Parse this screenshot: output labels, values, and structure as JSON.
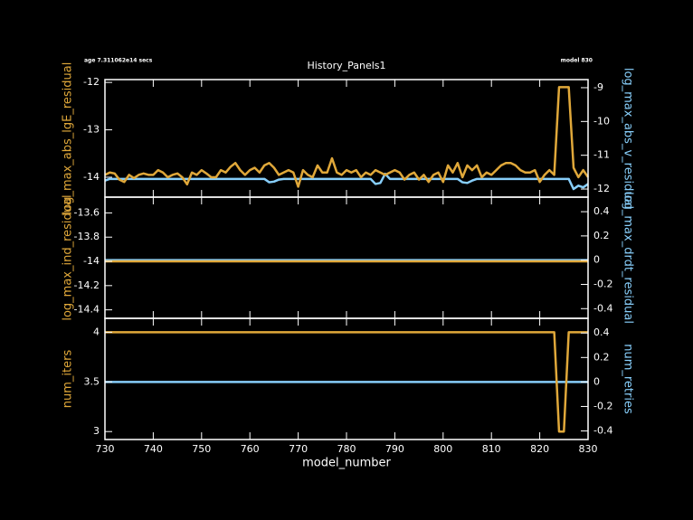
{
  "chart_data": [
    {
      "type": "line",
      "title": "History_Panels1",
      "annotations": [
        "age 7.311062e14 secs",
        "model 830"
      ],
      "x": [
        730,
        731,
        732,
        733,
        734,
        735,
        736,
        737,
        738,
        739,
        740,
        741,
        742,
        743,
        744,
        745,
        746,
        747,
        748,
        749,
        750,
        751,
        752,
        753,
        754,
        755,
        756,
        757,
        758,
        759,
        760,
        761,
        762,
        763,
        764,
        765,
        766,
        767,
        768,
        769,
        770,
        771,
        772,
        773,
        774,
        775,
        776,
        777,
        778,
        779,
        780,
        781,
        782,
        783,
        784,
        785,
        786,
        787,
        788,
        789,
        790,
        791,
        792,
        793,
        794,
        795,
        796,
        797,
        798,
        799,
        800,
        801,
        802,
        803,
        804,
        805,
        806,
        807,
        808,
        809,
        810,
        811,
        812,
        813,
        814,
        815,
        816,
        817,
        818,
        819,
        820,
        821,
        822,
        823,
        824,
        825,
        826,
        827,
        828,
        829,
        830
      ],
      "xlim": [
        730,
        830
      ],
      "ylim": [
        -14.42,
        -11.94
      ],
      "yticks": [
        -12,
        -13,
        -14
      ],
      "y2lim": [
        -12.24,
        -8.76
      ],
      "y2ticks": [
        -9,
        -10,
        -11,
        -12
      ],
      "series": [
        {
          "name": "log_max_abs_lgE_residual",
          "color": "#e0a83a",
          "values": [
            -13.95,
            -13.9,
            -13.92,
            -14.05,
            -14.1,
            -13.95,
            -14.02,
            -13.95,
            -13.92,
            -13.95,
            -13.95,
            -13.85,
            -13.9,
            -14.0,
            -13.95,
            -13.92,
            -14.0,
            -14.15,
            -13.9,
            -13.95,
            -13.85,
            -13.92,
            -14.0,
            -14.0,
            -13.85,
            -13.9,
            -13.78,
            -13.7,
            -13.85,
            -13.95,
            -13.85,
            -13.8,
            -13.9,
            -13.75,
            -13.7,
            -13.8,
            -13.95,
            -13.9,
            -13.85,
            -13.9,
            -14.2,
            -13.85,
            -13.95,
            -14.0,
            -13.75,
            -13.9,
            -13.9,
            -13.6,
            -13.9,
            -13.95,
            -13.85,
            -13.9,
            -13.85,
            -14.0,
            -13.9,
            -13.95,
            -13.85,
            -13.9,
            -13.95,
            -13.9,
            -13.85,
            -13.9,
            -14.05,
            -13.95,
            -13.9,
            -14.05,
            -13.95,
            -14.1,
            -13.95,
            -13.9,
            -14.1,
            -13.75,
            -13.9,
            -13.7,
            -14.0,
            -13.75,
            -13.85,
            -13.75,
            -14.0,
            -13.9,
            -13.95,
            -13.85,
            -13.75,
            -13.7,
            -13.7,
            -13.75,
            -13.85,
            -13.9,
            -13.9,
            -13.85,
            -14.1,
            -13.95,
            -13.85,
            -13.95,
            -12.1,
            -12.1,
            -12.1,
            -13.8,
            -14.0,
            -13.85,
            -14.0
          ]
        },
        {
          "name": "log_max_abs_v_residual",
          "color": "#87cefa",
          "axis": "y2",
          "values": [
            -11.75,
            -11.7,
            -11.7,
            -11.7,
            -11.7,
            -11.7,
            -11.7,
            -11.7,
            -11.7,
            -11.7,
            -11.7,
            -11.7,
            -11.7,
            -11.7,
            -11.7,
            -11.7,
            -11.7,
            -11.7,
            -11.7,
            -11.7,
            -11.7,
            -11.7,
            -11.7,
            -11.7,
            -11.7,
            -11.7,
            -11.7,
            -11.7,
            -11.7,
            -11.7,
            -11.7,
            -11.7,
            -11.7,
            -11.7,
            -11.8,
            -11.78,
            -11.72,
            -11.7,
            -11.7,
            -11.7,
            -11.7,
            -11.7,
            -11.7,
            -11.7,
            -11.7,
            -11.7,
            -11.7,
            -11.7,
            -11.7,
            -11.7,
            -11.7,
            -11.7,
            -11.7,
            -11.7,
            -11.7,
            -11.7,
            -11.85,
            -11.82,
            -11.55,
            -11.7,
            -11.7,
            -11.7,
            -11.7,
            -11.7,
            -11.7,
            -11.7,
            -11.7,
            -11.7,
            -11.7,
            -11.7,
            -11.7,
            -11.7,
            -11.7,
            -11.7,
            -11.8,
            -11.82,
            -11.75,
            -11.7,
            -11.7,
            -11.7,
            -11.7,
            -11.7,
            -11.7,
            -11.7,
            -11.7,
            -11.7,
            -11.7,
            -11.7,
            -11.7,
            -11.7,
            -11.7,
            -11.7,
            -11.7,
            -11.7,
            -11.7,
            -11.7,
            -11.7,
            -12.0,
            -11.9,
            -11.95,
            -11.85
          ]
        }
      ]
    },
    {
      "type": "line",
      "x": [
        730,
        830
      ],
      "xlim": [
        730,
        830
      ],
      "ylim": [
        -14.47,
        -13.47
      ],
      "yticks": [
        -13.6,
        -13.8,
        -14,
        -14.2,
        -14.4
      ],
      "y2lim": [
        -0.48,
        0.52
      ],
      "y2ticks": [
        0.4,
        0.2,
        0,
        -0.2,
        -0.4
      ],
      "series": [
        {
          "name": "log_max_ind_residual",
          "color": "#e0a83a",
          "values": [
            -14,
            -14
          ]
        },
        {
          "name": "log_max_drdt_residual",
          "color": "#87cefa",
          "axis": "y2",
          "values": [
            0,
            0
          ]
        }
      ]
    },
    {
      "type": "line",
      "xlabel": "model_number",
      "x": [
        730,
        823,
        824,
        825,
        826,
        830
      ],
      "xlim": [
        730,
        830
      ],
      "xticks": [
        730,
        740,
        750,
        760,
        770,
        780,
        790,
        800,
        810,
        820,
        830
      ],
      "ylim": [
        2.92,
        4.14
      ],
      "yticks": [
        4,
        3.5,
        3
      ],
      "y2lim": [
        -0.47,
        0.52
      ],
      "y2ticks": [
        0.4,
        0.2,
        0,
        -0.2,
        -0.4
      ],
      "series": [
        {
          "name": "num_iters",
          "color": "#e0a83a",
          "values": [
            4,
            4,
            3,
            3,
            4,
            4
          ]
        },
        {
          "name": "num_retries",
          "color": "#87cefa",
          "axis": "y2",
          "values": [
            0,
            0,
            0,
            0,
            0,
            0
          ]
        }
      ]
    }
  ]
}
